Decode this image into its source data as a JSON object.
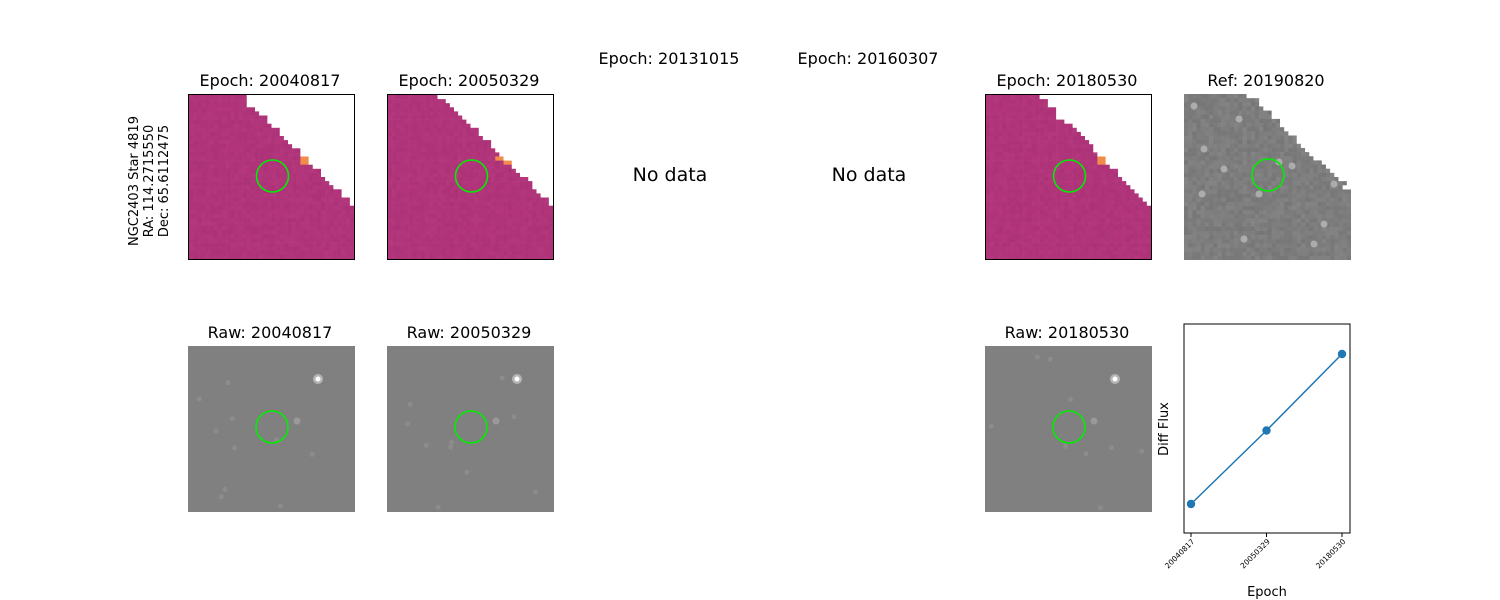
{
  "target": {
    "name": "NGC2403 Star 4819",
    "ra": "RA: 114.2715550",
    "dec": "Dec: 65.6112475"
  },
  "epochs": [
    {
      "diff_title": "Epoch: 20040817",
      "raw_title": "Raw: 20040817",
      "has_data": true
    },
    {
      "diff_title": "Epoch: 20050329",
      "raw_title": "Raw: 20050329",
      "has_data": true
    },
    {
      "diff_title": "Epoch: 20131015",
      "has_data": false,
      "no_data_label": "No data"
    },
    {
      "diff_title": "Epoch: 20160307",
      "has_data": false,
      "no_data_label": "No data"
    },
    {
      "diff_title": "Epoch: 20180530",
      "raw_title": "Raw: 20180530",
      "has_data": true
    }
  ],
  "reference": {
    "title": "Ref: 20190820"
  },
  "colors": {
    "diff_cmap_base": "#b5357a",
    "aperture_circle": "#00ee00",
    "raw_background": "#808080",
    "series_color": "#1f77b4"
  },
  "chart_data": {
    "type": "line",
    "categories": [
      "20040817",
      "20050329",
      "20180530"
    ],
    "values": [
      0.0,
      0.49,
      1.0
    ],
    "xlabel": "Epoch",
    "ylabel": "Diff Flux",
    "yticks_shown": false,
    "grid": false,
    "marker": "circle"
  }
}
